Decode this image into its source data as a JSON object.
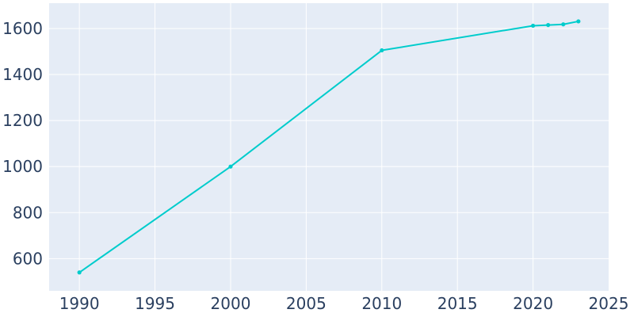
{
  "chart_data": {
    "type": "line",
    "title": "",
    "xlabel": "",
    "ylabel": "",
    "xlim": [
      1988,
      2025
    ],
    "ylim": [
      460,
      1710
    ],
    "x_ticks": [
      1990,
      1995,
      2000,
      2005,
      2010,
      2015,
      2020,
      2025
    ],
    "y_ticks": [
      600,
      800,
      1000,
      1200,
      1400,
      1600
    ],
    "grid": true,
    "legend": "none",
    "colors": {
      "line": "#00cccc",
      "plot_background": "#e5ecf6",
      "grid": "#ffffff",
      "tick_text": "#2a3f5f"
    },
    "series": [
      {
        "x": [
          1990,
          2000,
          2010,
          2020,
          2021,
          2022,
          2023
        ],
        "y": [
          540,
          1000,
          1505,
          1612,
          1615,
          1618,
          1631
        ]
      }
    ]
  }
}
